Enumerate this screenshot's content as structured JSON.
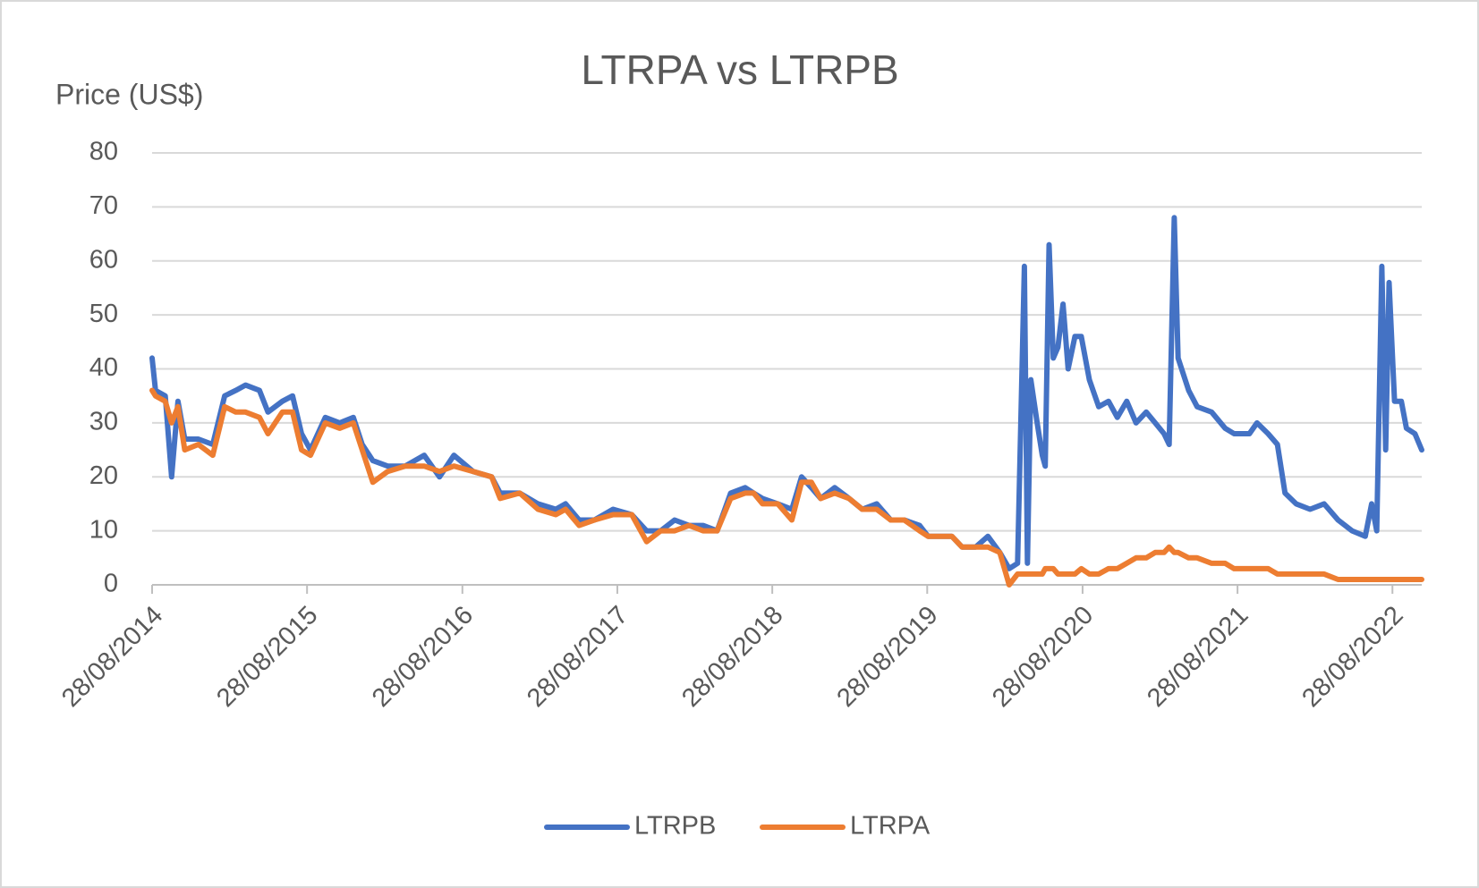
{
  "chart_data": {
    "type": "line",
    "title": "LTRPA vs LTRPB",
    "y_label": "Price (US$)",
    "x": [
      "2014-08-28",
      "2014-09-05",
      "2014-09-28",
      "2014-10-13",
      "2014-10-28",
      "2014-11-13",
      "2014-12-15",
      "2015-01-18",
      "2015-02-15",
      "2015-03-13",
      "2015-04-05",
      "2015-05-08",
      "2015-05-28",
      "2015-07-01",
      "2015-07-25",
      "2015-08-15",
      "2015-09-05",
      "2015-10-10",
      "2015-11-13",
      "2015-12-15",
      "2016-01-05",
      "2016-01-30",
      "2016-03-05",
      "2016-04-15",
      "2016-05-30",
      "2016-07-05",
      "2016-08-08",
      "2016-09-22",
      "2016-11-05",
      "2016-11-25",
      "2017-01-10",
      "2017-02-22",
      "2017-04-05",
      "2017-04-28",
      "2017-05-30",
      "2017-07-05",
      "2017-08-18",
      "2017-10-01",
      "2017-11-05",
      "2017-12-08",
      "2018-01-10",
      "2018-02-13",
      "2018-03-18",
      "2018-04-20",
      "2018-05-22",
      "2018-06-25",
      "2018-07-15",
      "2018-08-05",
      "2018-09-10",
      "2018-10-13",
      "2018-11-05",
      "2018-11-28",
      "2018-12-20",
      "2019-01-22",
      "2019-02-25",
      "2019-03-28",
      "2019-05-01",
      "2019-06-03",
      "2019-07-05",
      "2019-08-10",
      "2019-08-30",
      "2019-10-03",
      "2019-10-25",
      "2019-11-18",
      "2019-12-20",
      "2020-01-18",
      "2020-02-15",
      "2020-03-08",
      "2020-03-28",
      "2020-04-13",
      "2020-04-20",
      "2020-04-28",
      "2020-05-13",
      "2020-05-25",
      "2020-06-01",
      "2020-06-10",
      "2020-06-20",
      "2020-07-01",
      "2020-07-13",
      "2020-07-25",
      "2020-08-10",
      "2020-08-25",
      "2020-09-13",
      "2020-10-05",
      "2020-10-28",
      "2020-11-18",
      "2020-12-10",
      "2021-01-01",
      "2021-01-25",
      "2021-02-15",
      "2021-03-08",
      "2021-03-20",
      "2021-04-01",
      "2021-04-10",
      "2021-05-05",
      "2021-05-25",
      "2021-06-28",
      "2021-07-30",
      "2021-08-20",
      "2021-09-25",
      "2021-10-13",
      "2021-11-08",
      "2021-11-30",
      "2021-12-18",
      "2022-01-13",
      "2022-02-15",
      "2022-03-20",
      "2022-04-22",
      "2022-05-25",
      "2022-06-25",
      "2022-07-10",
      "2022-07-22",
      "2022-08-03",
      "2022-08-12",
      "2022-08-20",
      "2022-09-02",
      "2022-09-18",
      "2022-09-30",
      "2022-10-20",
      "2022-11-05"
    ],
    "series": [
      {
        "name": "LTRPB",
        "color": "#4472c4",
        "values": [
          42,
          36,
          35,
          20,
          34,
          27,
          27,
          26,
          35,
          36,
          37,
          36,
          32,
          34,
          35,
          28,
          25,
          31,
          30,
          31,
          26,
          23,
          22,
          22,
          24,
          20,
          24,
          21,
          20,
          17,
          17,
          15,
          14,
          15,
          12,
          12,
          14,
          13,
          10,
          10,
          12,
          11,
          11,
          10,
          17,
          18,
          17,
          16,
          15,
          14,
          20,
          18,
          16,
          18,
          16,
          14,
          15,
          12,
          12,
          11,
          9,
          9,
          9,
          7,
          7,
          9,
          6,
          3,
          4,
          59,
          4,
          38,
          30,
          24,
          22,
          63,
          42,
          44,
          52,
          40,
          46,
          46,
          38,
          33,
          34,
          31,
          34,
          30,
          32,
          30,
          28,
          26,
          68,
          42,
          36,
          33,
          32,
          29,
          28,
          28,
          30,
          28,
          26,
          17,
          15,
          14,
          15,
          12,
          10,
          9,
          15,
          10,
          59,
          25,
          56,
          34,
          34,
          29,
          28,
          25
        ]
      },
      {
        "name": "LTRPA",
        "color": "#ed7d31",
        "values": [
          36,
          35,
          34,
          30,
          33,
          25,
          26,
          24,
          33,
          32,
          32,
          31,
          28,
          32,
          32,
          25,
          24,
          30,
          29,
          30,
          25,
          19,
          21,
          22,
          22,
          21,
          22,
          21,
          20,
          16,
          17,
          14,
          13,
          14,
          11,
          12,
          13,
          13,
          8,
          10,
          10,
          11,
          10,
          10,
          16,
          17,
          17,
          15,
          15,
          12,
          19,
          19,
          16,
          17,
          16,
          14,
          14,
          12,
          12,
          10,
          9,
          9,
          9,
          7,
          7,
          7,
          6,
          0,
          2,
          2,
          2,
          2,
          2,
          2,
          3,
          3,
          3,
          2,
          2,
          2,
          2,
          3,
          2,
          2,
          3,
          3,
          4,
          5,
          5,
          6,
          6,
          7,
          6,
          6,
          5,
          5,
          4,
          4,
          3,
          3,
          3,
          3,
          2,
          2,
          2,
          2,
          2,
          1,
          1,
          1,
          1,
          1,
          1,
          1,
          1,
          1,
          1,
          1,
          1,
          1
        ]
      }
    ],
    "xlim": [
      "2014-08-28",
      "2022-11-05"
    ],
    "xticks": [
      {
        "value": "2014-08-28",
        "label": "28/08/2014"
      },
      {
        "value": "2015-08-28",
        "label": "28/08/2015"
      },
      {
        "value": "2016-08-28",
        "label": "28/08/2016"
      },
      {
        "value": "2017-08-28",
        "label": "28/08/2017"
      },
      {
        "value": "2018-08-28",
        "label": "28/08/2018"
      },
      {
        "value": "2019-08-28",
        "label": "28/08/2019"
      },
      {
        "value": "2020-08-28",
        "label": "28/08/2020"
      },
      {
        "value": "2021-08-28",
        "label": "28/08/2021"
      },
      {
        "value": "2022-08-28",
        "label": "28/08/2022"
      }
    ],
    "ylim": [
      0,
      80
    ],
    "yticks": [
      0,
      10,
      20,
      30,
      40,
      50,
      60,
      70,
      80
    ],
    "grid": true,
    "legend": "bottom"
  }
}
